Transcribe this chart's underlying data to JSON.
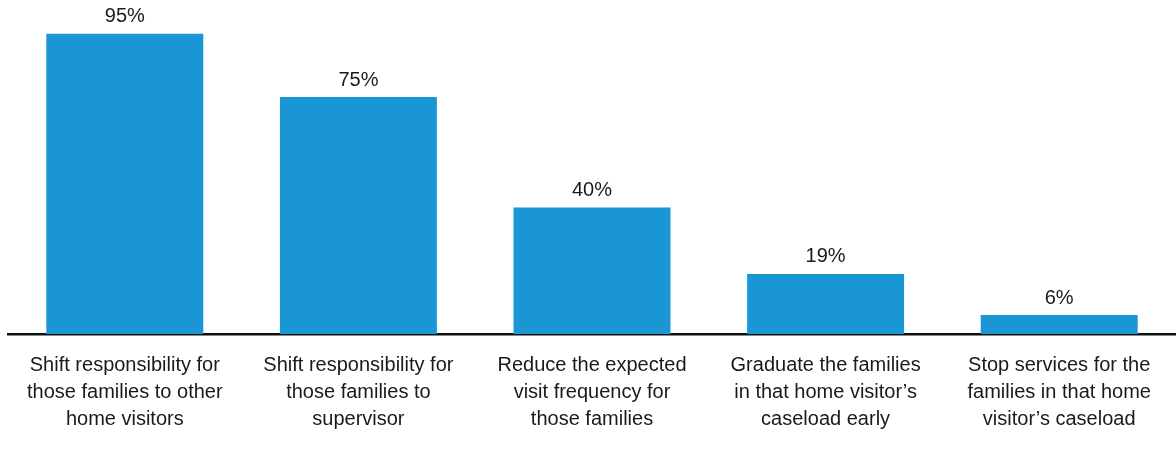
{
  "chart_data": {
    "type": "bar",
    "categories": [
      "Shift responsibility for those families to other home visitors",
      "Shift responsibility for those families to supervisor",
      "Reduce the expected visit frequency for those families",
      "Graduate the families in that home visitor’s caseload early",
      "Stop services for the families in that home visitor’s caseload"
    ],
    "values": [
      95,
      75,
      40,
      19,
      6
    ],
    "value_labels": [
      "95%",
      "75%",
      "40%",
      "19%",
      "6%"
    ],
    "color": "#1996d3",
    "grid": false,
    "legend": false
  }
}
